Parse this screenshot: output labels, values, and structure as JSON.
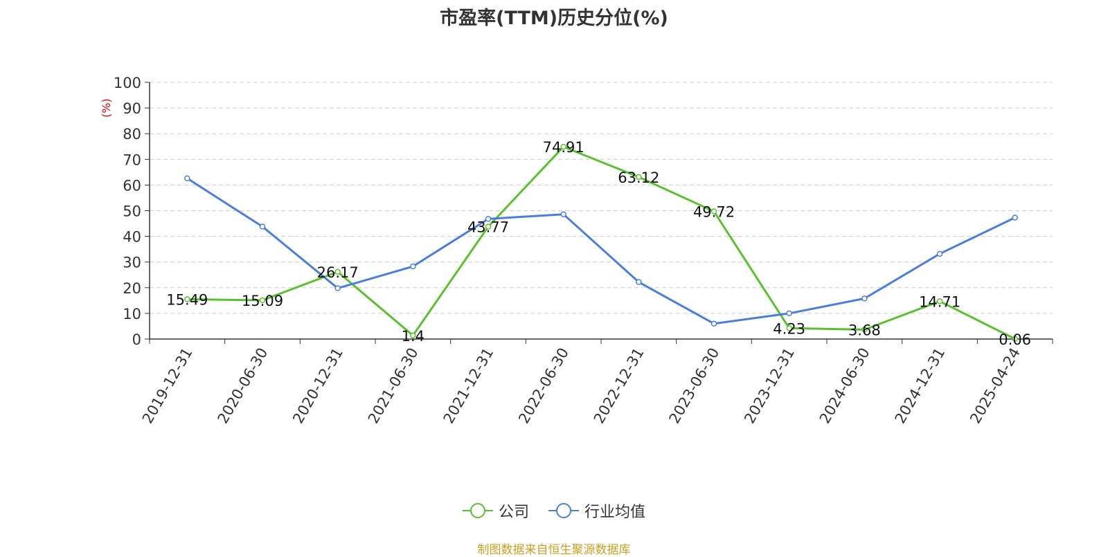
{
  "chart_data": {
    "type": "line",
    "title": "市盈率(TTM)历史分位(%)",
    "ylabel": "(%)",
    "ylim": [
      0,
      100
    ],
    "yticks": [
      0,
      10,
      20,
      30,
      40,
      50,
      60,
      70,
      80,
      90,
      100
    ],
    "categories": [
      "2019-12-31",
      "2020-06-30",
      "2020-12-31",
      "2021-06-30",
      "2021-12-31",
      "2022-06-30",
      "2022-12-31",
      "2023-06-30",
      "2023-12-31",
      "2024-06-30",
      "2024-12-31",
      "2025-04-24"
    ],
    "grid": true,
    "legend_position": "bottom",
    "series": [
      {
        "name": "公司",
        "color": "#5ac12e",
        "values": [
          15.49,
          15.09,
          26.17,
          1.4,
          43.77,
          74.91,
          63.12,
          49.72,
          4.23,
          3.68,
          14.71,
          0.06
        ],
        "labels": [
          "15.49",
          "15.09",
          "26.17",
          "1.4",
          "43.77",
          "74.91",
          "63.12",
          "49.72",
          "4.23",
          "3.68",
          "14.71",
          "0.06"
        ]
      },
      {
        "name": "行业均值",
        "color": "#4a7edc",
        "values": [
          62.6,
          43.8,
          19.8,
          28.3,
          46.8,
          48.6,
          22.2,
          6.0,
          10.0,
          15.8,
          33.2,
          47.3
        ]
      }
    ]
  },
  "source": "制图数据来自恒生聚源数据库"
}
